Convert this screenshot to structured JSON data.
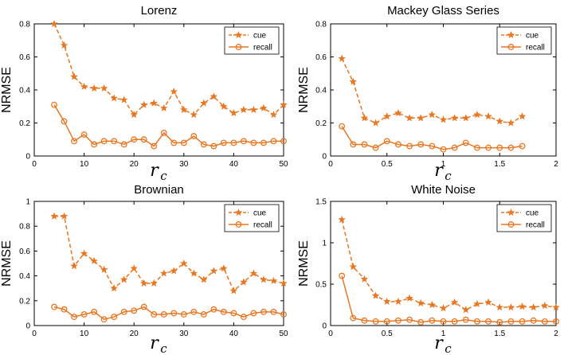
{
  "colors": {
    "series": "#E87722",
    "axis": "#000000"
  },
  "chart_data": [
    {
      "type": "line",
      "title": "Lorenz",
      "xlabel": "r",
      "xlabel_sub": "c",
      "ylabel": "NRMSE",
      "xlim": [
        0,
        50
      ],
      "ylim": [
        0,
        0.8
      ],
      "xticks": [
        0,
        10,
        20,
        30,
        40,
        50
      ],
      "xtick_labels": [
        "0",
        "10",
        "20",
        "30",
        "40",
        "50"
      ],
      "yticks": [
        0,
        0.2,
        0.4,
        0.6,
        0.8
      ],
      "ytick_labels": [
        "0",
        "0.2",
        "0.4",
        "0.6",
        "0.8"
      ],
      "legend_position": "top-right",
      "series": [
        {
          "name": "cue",
          "style": "dashed",
          "marker": "star",
          "x": [
            4,
            6,
            8,
            10,
            12,
            14,
            16,
            18,
            20,
            22,
            24,
            26,
            28,
            30,
            32,
            34,
            36,
            38,
            40,
            42,
            44,
            46,
            48,
            50
          ],
          "values": [
            0.8,
            0.67,
            0.48,
            0.42,
            0.41,
            0.41,
            0.35,
            0.34,
            0.25,
            0.31,
            0.32,
            0.29,
            0.39,
            0.28,
            0.25,
            0.32,
            0.36,
            0.3,
            0.26,
            0.28,
            0.28,
            0.29,
            0.25,
            0.31
          ]
        },
        {
          "name": "recall",
          "style": "solid",
          "marker": "circle",
          "x": [
            4,
            6,
            8,
            10,
            12,
            14,
            16,
            18,
            20,
            22,
            24,
            26,
            28,
            30,
            32,
            34,
            36,
            38,
            40,
            42,
            44,
            46,
            48,
            50
          ],
          "values": [
            0.31,
            0.21,
            0.09,
            0.13,
            0.07,
            0.09,
            0.09,
            0.07,
            0.1,
            0.1,
            0.06,
            0.14,
            0.08,
            0.08,
            0.12,
            0.07,
            0.06,
            0.08,
            0.08,
            0.09,
            0.08,
            0.08,
            0.09,
            0.09
          ]
        }
      ]
    },
    {
      "type": "line",
      "title": "Mackey Glass Series",
      "xlabel": "r",
      "xlabel_sub": "c",
      "ylabel": "NRMSE",
      "xlim": [
        0,
        2
      ],
      "ylim": [
        0,
        0.8
      ],
      "xticks": [
        0,
        0.5,
        1,
        1.5,
        2
      ],
      "xtick_labels": [
        "0",
        "0.5",
        "1",
        "1.5",
        "2"
      ],
      "yticks": [
        0,
        0.2,
        0.4,
        0.6,
        0.8
      ],
      "ytick_labels": [
        "0",
        "0.2",
        "0.4",
        "0.6",
        "0.8"
      ],
      "legend_position": "top-right",
      "series": [
        {
          "name": "cue",
          "style": "dashed",
          "marker": "star",
          "x": [
            0.1,
            0.2,
            0.3,
            0.4,
            0.5,
            0.6,
            0.7,
            0.8,
            0.9,
            1.0,
            1.1,
            1.2,
            1.3,
            1.4,
            1.5,
            1.6,
            1.7
          ],
          "values": [
            0.59,
            0.45,
            0.23,
            0.2,
            0.24,
            0.26,
            0.23,
            0.23,
            0.25,
            0.22,
            0.23,
            0.23,
            0.25,
            0.24,
            0.21,
            0.2,
            0.24
          ]
        },
        {
          "name": "recall",
          "style": "solid",
          "marker": "circle",
          "x": [
            0.1,
            0.2,
            0.3,
            0.4,
            0.5,
            0.6,
            0.7,
            0.8,
            0.9,
            1.0,
            1.1,
            1.2,
            1.3,
            1.4,
            1.5,
            1.6,
            1.7
          ],
          "values": [
            0.18,
            0.07,
            0.07,
            0.05,
            0.09,
            0.07,
            0.06,
            0.07,
            0.06,
            0.04,
            0.05,
            0.08,
            0.05,
            0.05,
            0.05,
            0.05,
            0.06
          ]
        }
      ]
    },
    {
      "type": "line",
      "title": "Brownian",
      "xlabel": "r",
      "xlabel_sub": "c",
      "ylabel": "NRMSE",
      "xlim": [
        0,
        50
      ],
      "ylim": [
        0,
        1
      ],
      "xticks": [
        0,
        10,
        20,
        30,
        40,
        50
      ],
      "xtick_labels": [
        "0",
        "10",
        "20",
        "30",
        "40",
        "50"
      ],
      "yticks": [
        0,
        0.2,
        0.4,
        0.6,
        0.8,
        1
      ],
      "ytick_labels": [
        "0",
        "0.2",
        "0.4",
        "0.6",
        "0.8",
        "1"
      ],
      "legend_position": "top-right",
      "series": [
        {
          "name": "cue",
          "style": "dashed",
          "marker": "star",
          "x": [
            4,
            6,
            8,
            10,
            12,
            14,
            16,
            18,
            20,
            22,
            24,
            26,
            28,
            30,
            32,
            34,
            36,
            38,
            40,
            42,
            44,
            46,
            48,
            50
          ],
          "values": [
            0.88,
            0.88,
            0.48,
            0.58,
            0.52,
            0.45,
            0.3,
            0.37,
            0.46,
            0.34,
            0.34,
            0.42,
            0.44,
            0.5,
            0.42,
            0.37,
            0.44,
            0.46,
            0.28,
            0.35,
            0.42,
            0.37,
            0.36,
            0.34
          ]
        },
        {
          "name": "recall",
          "style": "solid",
          "marker": "circle",
          "x": [
            4,
            6,
            8,
            10,
            12,
            14,
            16,
            18,
            20,
            22,
            24,
            26,
            28,
            30,
            32,
            34,
            36,
            38,
            40,
            42,
            44,
            46,
            48,
            50
          ],
          "values": [
            0.15,
            0.13,
            0.07,
            0.09,
            0.11,
            0.05,
            0.07,
            0.11,
            0.12,
            0.15,
            0.09,
            0.09,
            0.1,
            0.09,
            0.11,
            0.09,
            0.13,
            0.11,
            0.1,
            0.07,
            0.1,
            0.11,
            0.11,
            0.09
          ]
        }
      ]
    },
    {
      "type": "line",
      "title": "White Noise",
      "xlabel": "r",
      "xlabel_sub": "c",
      "ylabel": "NRMSE",
      "xlim": [
        0,
        2
      ],
      "ylim": [
        0,
        1.5
      ],
      "xticks": [
        0,
        0.5,
        1,
        1.5,
        2
      ],
      "xtick_labels": [
        "0",
        "0.5",
        "1",
        "1.5",
        "2"
      ],
      "yticks": [
        0,
        0.5,
        1,
        1.5
      ],
      "ytick_labels": [
        "0",
        "0.5",
        "1",
        "1.5"
      ],
      "legend_position": "top-right",
      "series": [
        {
          "name": "cue",
          "style": "dashed",
          "marker": "star",
          "x": [
            0.1,
            0.2,
            0.3,
            0.4,
            0.5,
            0.6,
            0.7,
            0.8,
            0.9,
            1.0,
            1.1,
            1.2,
            1.3,
            1.4,
            1.5,
            1.6,
            1.7,
            1.8,
            1.9,
            2.0
          ],
          "values": [
            1.28,
            0.71,
            0.56,
            0.36,
            0.29,
            0.29,
            0.33,
            0.27,
            0.25,
            0.21,
            0.28,
            0.19,
            0.26,
            0.28,
            0.22,
            0.22,
            0.23,
            0.22,
            0.24,
            0.22
          ]
        },
        {
          "name": "recall",
          "style": "solid",
          "marker": "circle",
          "x": [
            0.1,
            0.2,
            0.3,
            0.4,
            0.5,
            0.6,
            0.7,
            0.8,
            0.9,
            1.0,
            1.1,
            1.2,
            1.3,
            1.4,
            1.5,
            1.6,
            1.7,
            1.8,
            1.9,
            2.0
          ],
          "values": [
            0.6,
            0.09,
            0.06,
            0.05,
            0.05,
            0.06,
            0.07,
            0.04,
            0.06,
            0.05,
            0.05,
            0.07,
            0.05,
            0.05,
            0.04,
            0.05,
            0.05,
            0.06,
            0.05,
            0.05
          ]
        }
      ]
    }
  ]
}
